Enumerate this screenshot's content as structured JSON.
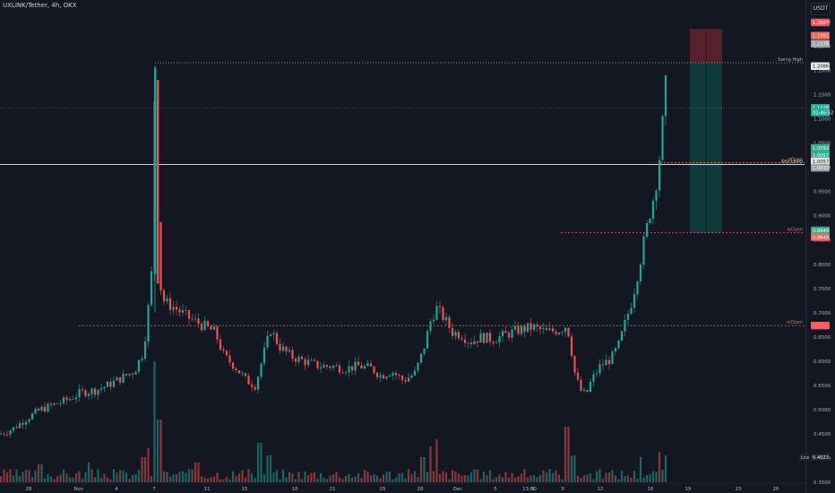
{
  "header": {
    "symbol_title": "UXLINK/Tether, 4h, OKX",
    "quote_currency": "USDT"
  },
  "chart_data": {
    "type": "candlestick",
    "symbol": "UXLINK/Tether",
    "interval": "4h",
    "exchange": "OKX",
    "y_axis_labels": [
      "1.3000",
      "1.2500",
      "1.2000",
      "1.1500",
      "1.1000",
      "1.0500",
      "1.0000",
      "0.9500",
      "0.9000",
      "0.8500",
      "0.8000",
      "0.7500",
      "0.7000",
      "0.6500",
      "0.6000",
      "0.5500",
      "0.5000",
      "0.4500",
      "0.4000",
      "0.3500"
    ],
    "ylim": [
      0.3375,
      1.3255
    ],
    "x_axis_labels": [
      "28",
      "Nov",
      "4",
      "7",
      "11",
      "15",
      "18",
      "21",
      "25",
      "28",
      "Dec",
      "5",
      "9",
      "13:00",
      "9",
      "12",
      "16",
      "19",
      "23",
      "26"
    ],
    "grid": false,
    "price_path": [
      [
        0,
        0.45
      ],
      [
        14,
        0.46
      ],
      [
        28,
        0.48
      ],
      [
        45,
        0.5
      ],
      [
        60,
        0.51
      ],
      [
        75,
        0.52
      ],
      [
        90,
        0.535
      ],
      [
        106,
        0.54
      ],
      [
        120,
        0.55
      ],
      [
        135,
        0.565
      ],
      [
        150,
        0.58
      ],
      [
        160,
        0.62
      ],
      [
        165,
        0.7
      ],
      [
        170,
        0.8
      ],
      [
        173,
        1.21
      ],
      [
        176,
        0.9
      ],
      [
        180,
        0.73
      ],
      [
        186,
        0.72
      ],
      [
        195,
        0.71
      ],
      [
        210,
        0.69
      ],
      [
        225,
        0.675
      ],
      [
        240,
        0.66
      ],
      [
        250,
        0.61
      ],
      [
        262,
        0.59
      ],
      [
        275,
        0.56
      ],
      [
        285,
        0.55
      ],
      [
        295,
        0.62
      ],
      [
        302,
        0.665
      ],
      [
        312,
        0.63
      ],
      [
        325,
        0.61
      ],
      [
        340,
        0.6
      ],
      [
        355,
        0.59
      ],
      [
        370,
        0.59
      ],
      [
        385,
        0.585
      ],
      [
        400,
        0.59
      ],
      [
        415,
        0.585
      ],
      [
        425,
        0.57
      ],
      [
        437,
        0.58
      ],
      [
        450,
        0.56
      ],
      [
        463,
        0.575
      ],
      [
        472,
        0.62
      ],
      [
        480,
        0.68
      ],
      [
        487,
        0.71
      ],
      [
        495,
        0.69
      ],
      [
        505,
        0.66
      ],
      [
        515,
        0.655
      ],
      [
        525,
        0.64
      ],
      [
        537,
        0.65
      ],
      [
        550,
        0.645
      ],
      [
        565,
        0.655
      ],
      [
        580,
        0.665
      ],
      [
        595,
        0.67
      ],
      [
        610,
        0.66
      ],
      [
        625,
        0.665
      ],
      [
        633,
        0.675
      ],
      [
        638,
        0.62
      ],
      [
        642,
        0.57
      ],
      [
        648,
        0.54
      ],
      [
        654,
        0.53
      ],
      [
        660,
        0.56
      ],
      [
        670,
        0.59
      ],
      [
        682,
        0.605
      ],
      [
        690,
        0.63
      ],
      [
        698,
        0.68
      ],
      [
        706,
        0.73
      ],
      [
        714,
        0.8
      ],
      [
        720,
        0.86
      ],
      [
        726,
        0.91
      ],
      [
        731,
        0.95
      ],
      [
        735,
        1.0
      ],
      [
        739,
        1.08
      ],
      [
        743,
        1.17
      ],
      [
        746,
        1.13
      ]
    ],
    "volume": {
      "spikes": [
        {
          "x": 45,
          "h": 20
        },
        {
          "x": 100,
          "h": 22
        },
        {
          "x": 160,
          "h": 28
        },
        {
          "x": 165,
          "h": 38
        },
        {
          "x": 173,
          "h": 135
        },
        {
          "x": 178,
          "h": 70
        },
        {
          "x": 220,
          "h": 22
        },
        {
          "x": 290,
          "h": 44
        },
        {
          "x": 300,
          "h": 30
        },
        {
          "x": 472,
          "h": 28
        },
        {
          "x": 480,
          "h": 40
        },
        {
          "x": 487,
          "h": 48
        },
        {
          "x": 633,
          "h": 62
        },
        {
          "x": 640,
          "h": 30
        },
        {
          "x": 714,
          "h": 28
        },
        {
          "x": 735,
          "h": 34
        },
        {
          "x": 743,
          "h": 30
        }
      ]
    },
    "levels": [
      {
        "label": "Swing High",
        "price": 1.2155,
        "color": "#b2b5be",
        "style": "dotted"
      },
      {
        "label": "Key Level",
        "price": 1.0057,
        "color": "#d1d4dc",
        "style": "solid"
      },
      {
        "label": "dOpen",
        "price": 1.0092,
        "color": "#ef9a4d",
        "style": "dashed"
      },
      {
        "label": "wOpen",
        "price": 0.8648,
        "color": "#f06262",
        "style": "dashed"
      },
      {
        "label": "mOpen",
        "price": 0.6735,
        "color": "#f06262",
        "style": "dashed"
      },
      {
        "label": "Low",
        "price": 0.4023,
        "color": "#b2b5be",
        "style": "none"
      }
    ],
    "position": {
      "entry": 1.2155,
      "target": 0.8648,
      "stop": 1.2852,
      "from_x_label": "16",
      "to_x_label": "19"
    },
    "price_tags": [
      {
        "text": "1.2987",
        "bg": "#f7525f",
        "price": 1.2987
      },
      {
        "text": "1.1961",
        "bg": "#f06262",
        "price": 1.2715
      },
      {
        "text": "1.2138",
        "bg": "#9aa5a0",
        "price": 1.2548
      },
      {
        "text": "1.2086",
        "bg": "#e6e6e6",
        "price": 1.2086,
        "fg": "#131722"
      },
      {
        "text": "1.1228",
        "bg": "#22ab94",
        "price": 1.1228
      },
      {
        "text": "02:46:52",
        "bg": "#22ab94",
        "price": 1.1128
      },
      {
        "text": "1.0092",
        "bg": "#2db08f",
        "price": 1.04
      },
      {
        "text": "1.0057",
        "bg": "#2db08f",
        "price": 1.0255
      },
      {
        "text": "1.0057",
        "bg": "#e6e6e6",
        "price": 1.012,
        "fg": "#131722"
      },
      {
        "text": "1.0033",
        "bg": "#9aa5a0",
        "price": 0.999
      },
      {
        "text": "0.8648",
        "bg": "#2db08f",
        "price": 0.87
      },
      {
        "text": "0.8648",
        "bg": "#f06262",
        "price": 0.856
      },
      {
        "text": "",
        "bg": "#f06262",
        "price": 0.6735
      },
      {
        "text": "0.4023",
        "bg": "#1e222d",
        "price": 0.4023
      }
    ],
    "current_price": 1.1228,
    "countdown": "02:46:52"
  }
}
